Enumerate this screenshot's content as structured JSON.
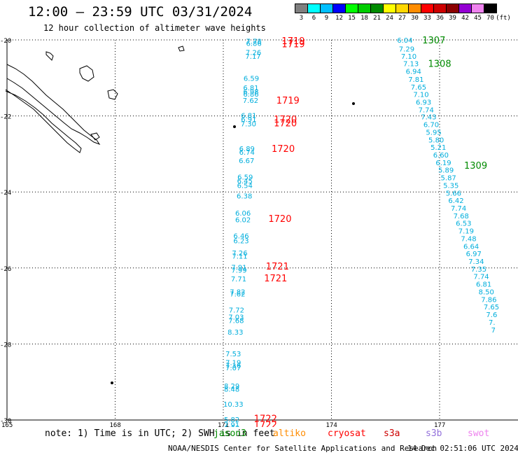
{
  "title": "12:00 – 23:59 UTC 03/31/2024",
  "subtitle": "12 hour collection of altimeter wave heights",
  "colorbar": {
    "unit": "(ft)",
    "labels": [
      "3",
      "6",
      "9",
      "12",
      "15",
      "18",
      "21",
      "24",
      "27",
      "30",
      "33",
      "36",
      "39",
      "42",
      "45",
      "70"
    ],
    "colors": [
      "#7f7f7f",
      "#00ffff",
      "#00bfff",
      "#0000ff",
      "#00ff00",
      "#00cd00",
      "#008b00",
      "#ffff00",
      "#ffd700",
      "#ff8c00",
      "#ff0000",
      "#cd0000",
      "#8b0000",
      "#9400d3",
      "#ee82ee",
      "#000000"
    ]
  },
  "map": {
    "lat_labels": [
      "-20",
      "-22",
      "-24",
      "-26",
      "-28",
      "-30"
    ],
    "lon_labels": [
      "165",
      "168",
      "171",
      "174",
      "177"
    ],
    "track_left": [
      {
        "v": "7.78",
        "lon": 171.63,
        "lat": -20.03
      },
      {
        "v": "6.86",
        "lon": 171.63,
        "lat": -20.08
      },
      {
        "v": "7.26",
        "lon": 171.62,
        "lat": -20.32
      },
      {
        "v": "7.17",
        "lon": 171.61,
        "lat": -20.42
      },
      {
        "v": "6.59",
        "lon": 171.56,
        "lat": -21.0
      },
      {
        "v": "6.81",
        "lon": 171.55,
        "lat": -21.25
      },
      {
        "v": "6.98",
        "lon": 171.55,
        "lat": -21.35
      },
      {
        "v": "6.86",
        "lon": 171.55,
        "lat": -21.42
      },
      {
        "v": "7.62",
        "lon": 171.54,
        "lat": -21.58
      },
      {
        "v": "6.81",
        "lon": 171.49,
        "lat": -21.98
      },
      {
        "v": "6.91",
        "lon": 171.49,
        "lat": -22.08
      },
      {
        "v": "7.30",
        "lon": 171.48,
        "lat": -22.2
      },
      {
        "v": "6.89",
        "lon": 171.44,
        "lat": -22.85
      },
      {
        "v": "6.74",
        "lon": 171.44,
        "lat": -22.95
      },
      {
        "v": "6.67",
        "lon": 171.43,
        "lat": -23.17
      },
      {
        "v": "6.59",
        "lon": 171.39,
        "lat": -23.6
      },
      {
        "v": "6.45",
        "lon": 171.38,
        "lat": -23.7
      },
      {
        "v": "6.54",
        "lon": 171.38,
        "lat": -23.82
      },
      {
        "v": "6.38",
        "lon": 171.37,
        "lat": -24.1
      },
      {
        "v": "6.06",
        "lon": 171.33,
        "lat": -24.55
      },
      {
        "v": "6.02",
        "lon": 171.33,
        "lat": -24.72
      },
      {
        "v": "6.46",
        "lon": 171.28,
        "lat": -25.15
      },
      {
        "v": "6.23",
        "lon": 171.28,
        "lat": -25.28
      },
      {
        "v": "7.26",
        "lon": 171.24,
        "lat": -25.6
      },
      {
        "v": "7.11",
        "lon": 171.24,
        "lat": -25.68
      },
      {
        "v": "7.91",
        "lon": 171.22,
        "lat": -25.98
      },
      {
        "v": "7.99",
        "lon": 171.22,
        "lat": -26.05
      },
      {
        "v": "7.71",
        "lon": 171.21,
        "lat": -26.28
      },
      {
        "v": "7.82",
        "lon": 171.18,
        "lat": -26.62
      },
      {
        "v": "7.62",
        "lon": 171.18,
        "lat": -26.68
      },
      {
        "v": "7.72",
        "lon": 171.15,
        "lat": -27.1
      },
      {
        "v": "7.03",
        "lon": 171.14,
        "lat": -27.28
      },
      {
        "v": "7.68",
        "lon": 171.14,
        "lat": -27.38
      },
      {
        "v": "8.33",
        "lon": 171.12,
        "lat": -27.68
      },
      {
        "v": "7.53",
        "lon": 171.06,
        "lat": -28.25
      },
      {
        "v": "7.19",
        "lon": 171.06,
        "lat": -28.48
      },
      {
        "v": "7.16",
        "lon": 171.06,
        "lat": -28.55
      },
      {
        "v": "7.07",
        "lon": 171.06,
        "lat": -28.62
      },
      {
        "v": "8.29",
        "lon": 171.02,
        "lat": -29.1
      },
      {
        "v": "8.48",
        "lon": 171.02,
        "lat": -29.18
      },
      {
        "v": "10.33",
        "lon": 171.0,
        "lat": -29.58
      },
      {
        "v": "5.82",
        "lon": 171.02,
        "lat": -29.98
      },
      {
        "v": "7.91",
        "lon": 171.02,
        "lat": -30.12
      },
      {
        "v": "6.18",
        "lon": 171.02,
        "lat": -30.2
      }
    ],
    "track_right": [
      {
        "v": "6.04",
        "lon": 175.82,
        "lat": -20.0
      },
      {
        "v": "7.29",
        "lon": 175.87,
        "lat": -20.23
      },
      {
        "v": "7.10",
        "lon": 175.93,
        "lat": -20.42
      },
      {
        "v": "7.13",
        "lon": 175.99,
        "lat": -20.62
      },
      {
        "v": "6.94",
        "lon": 176.06,
        "lat": -20.82
      },
      {
        "v": "7.81",
        "lon": 176.13,
        "lat": -21.03
      },
      {
        "v": "7.65",
        "lon": 176.2,
        "lat": -21.23
      },
      {
        "v": "7.10",
        "lon": 176.27,
        "lat": -21.43
      },
      {
        "v": "6.93",
        "lon": 176.34,
        "lat": -21.63
      },
      {
        "v": "7.74",
        "lon": 176.41,
        "lat": -21.83
      },
      {
        "v": "7.43",
        "lon": 176.48,
        "lat": -22.02
      },
      {
        "v": "6.70",
        "lon": 176.55,
        "lat": -22.22
      },
      {
        "v": "5.95",
        "lon": 176.62,
        "lat": -22.42
      },
      {
        "v": "5.80",
        "lon": 176.69,
        "lat": -22.62
      },
      {
        "v": "5.21",
        "lon": 176.75,
        "lat": -22.82
      },
      {
        "v": "6.60",
        "lon": 176.82,
        "lat": -23.02
      },
      {
        "v": "6.19",
        "lon": 176.89,
        "lat": -23.22
      },
      {
        "v": "5.89",
        "lon": 176.96,
        "lat": -23.42
      },
      {
        "v": "5.87",
        "lon": 177.03,
        "lat": -23.62
      },
      {
        "v": "5.35",
        "lon": 177.1,
        "lat": -23.82
      },
      {
        "v": "5.66",
        "lon": 177.17,
        "lat": -24.02
      },
      {
        "v": "6.42",
        "lon": 177.24,
        "lat": -24.22
      },
      {
        "v": "7.74",
        "lon": 177.31,
        "lat": -24.42
      },
      {
        "v": "7.68",
        "lon": 177.38,
        "lat": -24.62
      },
      {
        "v": "6.53",
        "lon": 177.45,
        "lat": -24.82
      },
      {
        "v": "7.19",
        "lon": 177.52,
        "lat": -25.02
      },
      {
        "v": "7.48",
        "lon": 177.59,
        "lat": -25.22
      },
      {
        "v": "6.64",
        "lon": 177.66,
        "lat": -25.42
      },
      {
        "v": "6.97",
        "lon": 177.73,
        "lat": -25.62
      },
      {
        "v": "7.34",
        "lon": 177.8,
        "lat": -25.82
      },
      {
        "v": "7.35",
        "lon": 177.87,
        "lat": -26.02
      },
      {
        "v": "7.74",
        "lon": 177.94,
        "lat": -26.22
      },
      {
        "v": "6.81",
        "lon": 178.01,
        "lat": -26.42
      },
      {
        "v": "8.50",
        "lon": 178.08,
        "lat": -26.62
      },
      {
        "v": "7.86",
        "lon": 178.15,
        "lat": -26.82
      },
      {
        "v": "7.65",
        "lon": 178.22,
        "lat": -27.02
      },
      {
        "v": "7.6",
        "lon": 178.29,
        "lat": -27.22
      },
      {
        "v": "7.",
        "lon": 178.36,
        "lat": -27.42
      },
      {
        "v": "7",
        "lon": 178.43,
        "lat": -27.62
      }
    ],
    "pass_labels": [
      {
        "v": "1719",
        "lon": 172.62,
        "lat": -20.02,
        "color": "#ff0000"
      },
      {
        "v": "1719",
        "lon": 172.62,
        "lat": -20.1,
        "color": "#ff0000"
      },
      {
        "v": "1719",
        "lon": 172.47,
        "lat": -21.58,
        "color": "#ff0000"
      },
      {
        "v": "1720",
        "lon": 172.4,
        "lat": -22.08,
        "color": "#ff0000"
      },
      {
        "v": "1720",
        "lon": 172.4,
        "lat": -22.18,
        "color": "#ff0000"
      },
      {
        "v": "1720",
        "lon": 172.34,
        "lat": -22.85,
        "color": "#ff0000"
      },
      {
        "v": "1720",
        "lon": 172.25,
        "lat": -24.7,
        "color": "#ff0000"
      },
      {
        "v": "1721",
        "lon": 172.18,
        "lat": -25.95,
        "color": "#ff0000"
      },
      {
        "v": "1721",
        "lon": 172.13,
        "lat": -26.26,
        "color": "#ff0000"
      },
      {
        "v": "1722",
        "lon": 171.85,
        "lat": -29.95,
        "color": "#ff0000"
      },
      {
        "v": "1722",
        "lon": 171.85,
        "lat": -30.12,
        "color": "#ff0000"
      },
      {
        "v": "1307",
        "lon": 176.52,
        "lat": -20.0,
        "color": "#008b00"
      },
      {
        "v": "1308",
        "lon": 176.68,
        "lat": -20.62,
        "color": "#008b00"
      },
      {
        "v": "1309",
        "lon": 177.68,
        "lat": -23.3,
        "color": "#008b00"
      }
    ]
  },
  "footer": {
    "note": "note: 1) Time is in UTC; 2) SWH is in feet",
    "sats": [
      {
        "name": "jason3",
        "color": "#008b00"
      },
      {
        "name": "altiko",
        "color": "#ff8c00"
      },
      {
        "name": "cryosat",
        "color": "#ff0000"
      },
      {
        "name": "s3a",
        "color": "#cd0000"
      },
      {
        "name": "s3b",
        "color": "#9370db"
      },
      {
        "name": "swot",
        "color": "#ee82ee"
      }
    ],
    "credit": "NOAA/NESDIS Center for Satellite Applications and Research",
    "timestamp": "14 Dec 02:51:06 UTC 2024"
  }
}
